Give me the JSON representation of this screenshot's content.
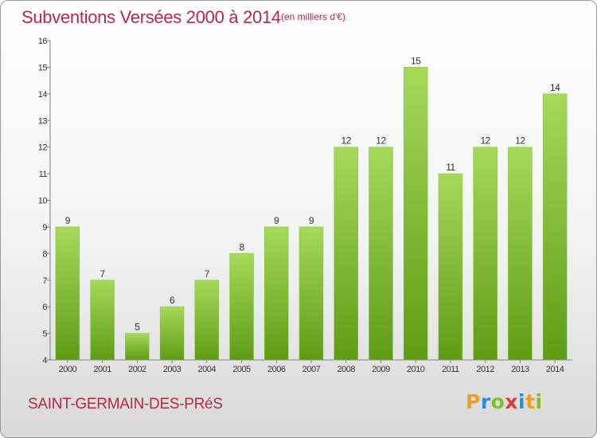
{
  "header": {
    "title": "Subventions Versées 2000 à 2014",
    "subtitle": "(en milliers d'€)"
  },
  "footer": {
    "commune": "SAINT-GERMAIN-DES-PRéS",
    "logo_letters": [
      "P",
      "r",
      "o",
      "x",
      "i",
      "t",
      "i"
    ],
    "logo_colors": [
      "#f0a020",
      "#2c8fd6",
      "#7fbf2a",
      "#e03a3a",
      "#2c8fd6",
      "#f0a020",
      "#7fbf2a"
    ]
  },
  "chart_data": {
    "type": "bar",
    "title": "Subventions Versées 2000 à 2014",
    "subtitle": "(en milliers d'€)",
    "categories": [
      "2000",
      "2001",
      "2002",
      "2003",
      "2004",
      "2005",
      "2006",
      "2007",
      "2008",
      "2009",
      "2010",
      "2011",
      "2012",
      "2013",
      "2014"
    ],
    "values": [
      9,
      7,
      5,
      6,
      7,
      8,
      9,
      9,
      12,
      12,
      15,
      11,
      12,
      12,
      14
    ],
    "ylim": [
      4,
      16
    ],
    "yticks": [
      4,
      5,
      6,
      7,
      8,
      9,
      10,
      11,
      12,
      13,
      14,
      15,
      16
    ],
    "grid": false,
    "legend": "none",
    "colors": {
      "bar_light": "#a6d95a",
      "bar_dark": "#5e9c16",
      "axis": "#808080",
      "text": "#333333"
    }
  }
}
